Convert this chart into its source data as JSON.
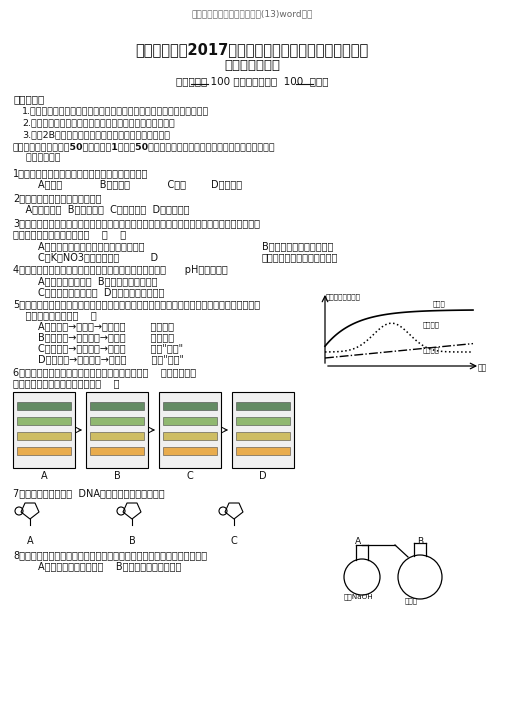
{
  "header": "高二生物上学期期末考试试题(13)word版本",
  "title1": "宁夏育才中学2017学年第一学期高二年级期末考试一试",
  "title2": "题理科（生物）",
  "subtitle": "（试卷满分 100 分，考试时间为  100  分钟）",
  "instr_header": "答题说明：",
  "instructions": [
    "1.考生应把学校、考场、考号、姓名写在密封线之内，密封线之外无效。",
    "2.请用钢笔、中型笔或圆珠笔把答案写在答题卡的横线上。",
    "3.请用2B铅笔将选择题正确选项涂到专用的答题卡上。"
  ],
  "sec1_line1": "一、选择题（本大题共50小题，每题1分，共50分，在每题给出的四个选项中，只有一个选项切合",
  "sec1_line2": "    题目要求。）",
  "q1_text": "1．、以下生物中，不按照孟德尔遗传定律的是（）",
  "q1_opts": "        A．玉米            B．念珠藻            C．人        D．百灵鸟",
  "q2_text": "2．一个三肽化合物中，含有（）",
  "q2_opts": "    A．三个肽键  B．三个肽链  C．三个氨基  D．以上都错",
  "q3_text1": "3．将洋葱表皮放入必定浓度的硝酸钾溶液中，其细胞便发生质壁分别，不久这些细胞又逐渐发",
  "q3_text2": "生质壁分别复原，其原由是：    （    ）",
  "q3_optA": "        A．质壁分别后的细胞只同意水分子进入",
  "q3_optB": "B．细胞液的溶质量出细胞",
  "q3_optC": "        C．K和NO3离子进入液泡          D",
  "q3_optD": "．水分和溶质自由地进入细胞",
  "q4_text": "4．在研究不一样的温度对酶活性的影响的实验中，温度和      pH值分别属于",
  "q4_opt1": "        A．自变量和因变量  B．因变量和没关变量",
  "q4_opt2": "        C．自变量和没关变量  D．自变量和比较变量",
  "q5_text1": "5．右图是表示抗体形成过程中相应细胞生物膜面积随时间变化状况，图中所示三种膜转变次序",
  "q5_text2": "    及转移方式按次是（    ）",
  "q5_optA": "        A．细胞膜→内质网→高尔基体        直接接触",
  "q5_optB": "        B．细胞膜→高尔基体→内质网        直接接触",
  "q5_optC": "        C．细胞膜→高尔基体→内质网        产生\"小泡\"",
  "q5_optD": "        D．内质网→高尔基体→细胞膜        产生\"小泡\"",
  "q5_graph_ylabel": "膜面积（相对值）",
  "q5_graph_xlabel": "时间",
  "q5_label1": "细胞膜",
  "q5_label2": "高尔基体",
  "q5_label3": "高尔基体",
  "q6_text1": "6．以下图为某同学对植物叶绿体中色素分别的结果    ，此中所标志",
  "q6_text2": "的色素名称或颜色正确的选项是（    ）",
  "strip_labels": [
    "A",
    "B",
    "C",
    "D"
  ],
  "q7_text": "7．以下四种核苷酸在  DNA分子中均有存在的是（）",
  "nuc_labels": [
    "A",
    "B",
    "C"
  ],
  "q8_text": "8．在有氧呼吸过程中，水分子参加应此的过程和生成水分子的过程分别在",
  "q8_opts": "        A．第一阶段和第二阶段    B．第二阶段和第三阶段",
  "apparatus_labels": [
    "A",
    "B"
  ],
  "apparatus_text1": "足量NaOH",
  "apparatus_text2": "石灰水",
  "bg": "#ffffff",
  "fg": "#111111"
}
